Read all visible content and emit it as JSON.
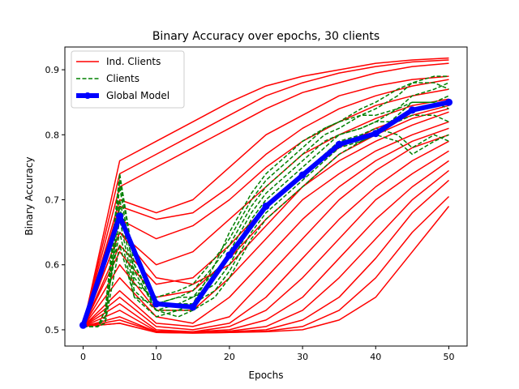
{
  "chart_data": {
    "type": "line",
    "title": "Binary Accuracy over epochs, 30 clients",
    "xlabel": "Epochs",
    "ylabel": "Binary Accuracy",
    "xlim": [
      -2.5,
      52.5
    ],
    "ylim": [
      0.475,
      0.935
    ],
    "xticks": [
      0,
      10,
      20,
      30,
      40,
      50
    ],
    "yticks": [
      0.5,
      0.6,
      0.7,
      0.8,
      0.9
    ],
    "xtick_labels": [
      "0",
      "10",
      "20",
      "30",
      "40",
      "50"
    ],
    "ytick_labels": [
      "0.5",
      "0.6",
      "0.7",
      "0.8",
      "0.9"
    ],
    "grid": false,
    "legend_position": "top-left",
    "legend": [
      {
        "label": "Ind. Clients",
        "color": "#ff0000",
        "style": "solid"
      },
      {
        "label": "Clients",
        "color": "#008000",
        "style": "dashed"
      },
      {
        "label": "Global Model",
        "color": "#0000ff",
        "style": "thick-marker"
      }
    ],
    "colors": {
      "ind_clients": "#ff0000",
      "clients": "#008000",
      "global_model": "#0000ff"
    },
    "ind_clients_x": [
      0,
      5,
      10,
      15,
      20,
      25,
      30,
      35,
      40,
      45,
      50
    ],
    "ind_clients_series": [
      [
        0.505,
        0.76,
        0.79,
        0.82,
        0.85,
        0.875,
        0.89,
        0.9,
        0.91,
        0.915,
        0.918
      ],
      [
        0.505,
        0.74,
        0.77,
        0.8,
        0.83,
        0.86,
        0.88,
        0.895,
        0.905,
        0.912,
        0.915
      ],
      [
        0.505,
        0.72,
        0.75,
        0.78,
        0.81,
        0.84,
        0.865,
        0.88,
        0.895,
        0.905,
        0.91
      ],
      [
        0.505,
        0.7,
        0.68,
        0.7,
        0.75,
        0.8,
        0.83,
        0.86,
        0.875,
        0.885,
        0.89
      ],
      [
        0.505,
        0.69,
        0.67,
        0.68,
        0.72,
        0.77,
        0.81,
        0.84,
        0.86,
        0.875,
        0.885
      ],
      [
        0.505,
        0.67,
        0.64,
        0.66,
        0.7,
        0.75,
        0.79,
        0.82,
        0.845,
        0.86,
        0.87
      ],
      [
        0.505,
        0.65,
        0.6,
        0.62,
        0.67,
        0.72,
        0.77,
        0.8,
        0.825,
        0.845,
        0.855
      ],
      [
        0.505,
        0.63,
        0.57,
        0.58,
        0.63,
        0.69,
        0.74,
        0.78,
        0.81,
        0.83,
        0.845
      ],
      [
        0.505,
        0.62,
        0.55,
        0.56,
        0.61,
        0.67,
        0.72,
        0.76,
        0.79,
        0.815,
        0.835
      ],
      [
        0.505,
        0.6,
        0.53,
        0.53,
        0.58,
        0.64,
        0.7,
        0.74,
        0.775,
        0.8,
        0.82
      ],
      [
        0.505,
        0.58,
        0.52,
        0.51,
        0.55,
        0.61,
        0.67,
        0.72,
        0.76,
        0.79,
        0.81
      ],
      [
        0.505,
        0.56,
        0.51,
        0.505,
        0.52,
        0.58,
        0.64,
        0.7,
        0.745,
        0.78,
        0.8
      ],
      [
        0.505,
        0.55,
        0.505,
        0.5,
        0.51,
        0.55,
        0.61,
        0.67,
        0.72,
        0.76,
        0.79
      ],
      [
        0.505,
        0.54,
        0.5,
        0.497,
        0.505,
        0.53,
        0.58,
        0.64,
        0.7,
        0.74,
        0.775
      ],
      [
        0.505,
        0.53,
        0.498,
        0.497,
        0.5,
        0.515,
        0.55,
        0.61,
        0.67,
        0.72,
        0.76
      ],
      [
        0.505,
        0.52,
        0.497,
        0.496,
        0.498,
        0.505,
        0.53,
        0.58,
        0.64,
        0.7,
        0.745
      ],
      [
        0.505,
        0.515,
        0.497,
        0.496,
        0.497,
        0.5,
        0.515,
        0.55,
        0.61,
        0.68,
        0.73
      ],
      [
        0.505,
        0.51,
        0.496,
        0.495,
        0.496,
        0.498,
        0.505,
        0.53,
        0.58,
        0.65,
        0.705
      ],
      [
        0.505,
        0.51,
        0.496,
        0.495,
        0.496,
        0.497,
        0.5,
        0.515,
        0.55,
        0.62,
        0.69
      ],
      [
        0.505,
        0.65,
        0.58,
        0.57,
        0.6,
        0.66,
        0.72,
        0.77,
        0.8,
        0.825,
        0.84
      ]
    ],
    "clients_x": [
      0,
      2,
      3,
      5,
      7,
      10,
      13,
      15,
      18,
      20,
      23,
      25,
      28,
      30,
      33,
      35,
      38,
      40,
      43,
      45,
      48,
      50
    ],
    "clients_series": [
      [
        0.505,
        0.505,
        0.53,
        0.74,
        0.6,
        0.53,
        0.53,
        0.53,
        0.58,
        0.62,
        0.68,
        0.71,
        0.74,
        0.76,
        0.79,
        0.8,
        0.81,
        0.82,
        0.84,
        0.86,
        0.87,
        0.88
      ],
      [
        0.505,
        0.505,
        0.52,
        0.72,
        0.58,
        0.54,
        0.55,
        0.56,
        0.6,
        0.63,
        0.69,
        0.72,
        0.75,
        0.77,
        0.8,
        0.81,
        0.83,
        0.84,
        0.86,
        0.88,
        0.89,
        0.89
      ],
      [
        0.505,
        0.505,
        0.51,
        0.69,
        0.57,
        0.55,
        0.56,
        0.57,
        0.61,
        0.64,
        0.7,
        0.73,
        0.76,
        0.78,
        0.81,
        0.82,
        0.84,
        0.85,
        0.87,
        0.88,
        0.88,
        0.87
      ],
      [
        0.505,
        0.505,
        0.52,
        0.67,
        0.56,
        0.53,
        0.54,
        0.55,
        0.57,
        0.6,
        0.66,
        0.69,
        0.72,
        0.74,
        0.77,
        0.79,
        0.8,
        0.81,
        0.8,
        0.78,
        0.8,
        0.79
      ],
      [
        0.505,
        0.505,
        0.53,
        0.65,
        0.55,
        0.52,
        0.53,
        0.54,
        0.56,
        0.59,
        0.65,
        0.68,
        0.71,
        0.73,
        0.76,
        0.78,
        0.79,
        0.8,
        0.79,
        0.77,
        0.79,
        0.8
      ],
      [
        0.505,
        0.505,
        0.51,
        0.63,
        0.55,
        0.54,
        0.55,
        0.55,
        0.59,
        0.61,
        0.67,
        0.7,
        0.73,
        0.75,
        0.78,
        0.8,
        0.81,
        0.82,
        0.82,
        0.83,
        0.83,
        0.82
      ],
      [
        0.505,
        0.505,
        0.52,
        0.7,
        0.59,
        0.53,
        0.52,
        0.53,
        0.55,
        0.58,
        0.64,
        0.67,
        0.7,
        0.72,
        0.75,
        0.77,
        0.79,
        0.8,
        0.83,
        0.85,
        0.85,
        0.84
      ],
      [
        0.505,
        0.505,
        0.52,
        0.73,
        0.6,
        0.54,
        0.54,
        0.54,
        0.6,
        0.65,
        0.71,
        0.74,
        0.77,
        0.79,
        0.81,
        0.82,
        0.83,
        0.83,
        0.84,
        0.85,
        0.85,
        0.86
      ]
    ],
    "global_model_x": [
      0,
      5,
      10,
      15,
      20,
      25,
      30,
      35,
      40,
      45,
      50
    ],
    "global_model": [
      0.507,
      0.675,
      0.54,
      0.535,
      0.615,
      0.69,
      0.738,
      0.785,
      0.802,
      0.838,
      0.85
    ]
  }
}
